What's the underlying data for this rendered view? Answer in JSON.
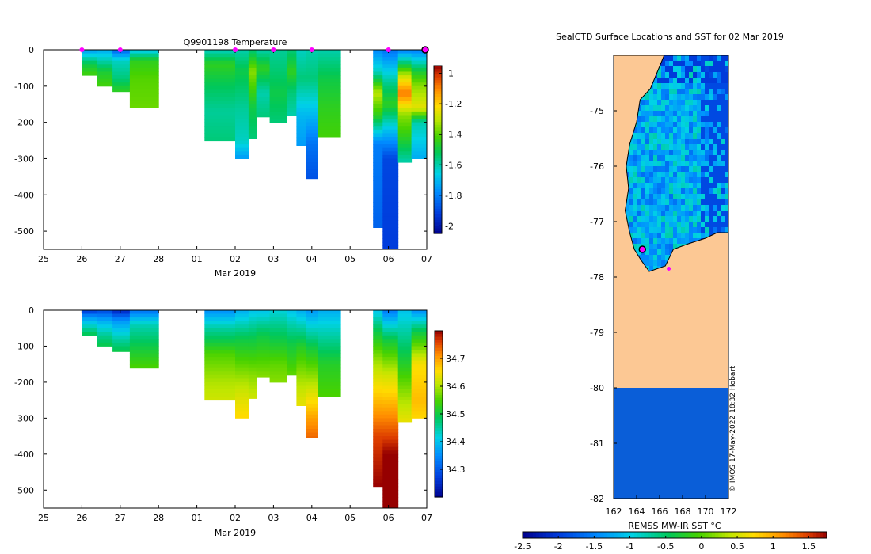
{
  "chart_data": [
    {
      "type": "heatmap",
      "id": "temperature",
      "title": "Q9901198  Temperature",
      "xlabel": "Mar 2019",
      "ylabel": "",
      "x_ticks": [
        "25",
        "26",
        "27",
        "28",
        "01",
        "02",
        "03",
        "04",
        "05",
        "06",
        "07"
      ],
      "x_tick_days": [
        0,
        1,
        2,
        3,
        4,
        5,
        6,
        7,
        8,
        9,
        10
      ],
      "xlim_days": [
        0,
        10
      ],
      "ylim": [
        -550,
        0
      ],
      "y_ticks": [
        0,
        -100,
        -200,
        -300,
        -400,
        -500
      ],
      "colorbar": {
        "min": -2.05,
        "max": -0.95,
        "ticks": [
          -1,
          -1.2,
          -1.4,
          -1.6,
          -1.8,
          -2
        ]
      },
      "profile_markers_days": [
        1.0,
        2.0,
        5.0,
        6.0,
        7.0,
        9.0
      ],
      "current_marker_days": 10.0,
      "profiles": [
        {
          "x0": 1.0,
          "x1": 1.4,
          "depth": 70,
          "stops": [
            [
              0,
              -1.75
            ],
            [
              20,
              -1.62
            ],
            [
              40,
              -1.5
            ],
            [
              70,
              -1.42
            ]
          ]
        },
        {
          "x0": 1.4,
          "x1": 1.8,
          "depth": 100,
          "stops": [
            [
              0,
              -1.72
            ],
            [
              30,
              -1.6
            ],
            [
              60,
              -1.48
            ],
            [
              100,
              -1.42
            ]
          ]
        },
        {
          "x0": 1.8,
          "x1": 2.25,
          "depth": 115,
          "stops": [
            [
              0,
              -1.85
            ],
            [
              30,
              -1.62
            ],
            [
              80,
              -1.55
            ],
            [
              115,
              -1.45
            ]
          ]
        },
        {
          "x0": 2.25,
          "x1": 3.0,
          "depth": 160,
          "stops": [
            [
              0,
              -1.68
            ],
            [
              30,
              -1.45
            ],
            [
              80,
              -1.4
            ],
            [
              160,
              -1.38
            ]
          ]
        },
        {
          "x0": 4.2,
          "x1": 5.0,
          "depth": 250,
          "stops": [
            [
              0,
              -1.62
            ],
            [
              40,
              -1.45
            ],
            [
              100,
              -1.52
            ],
            [
              170,
              -1.58
            ],
            [
              250,
              -1.55
            ]
          ]
        },
        {
          "x0": 5.0,
          "x1": 5.35,
          "depth": 300,
          "stops": [
            [
              0,
              -1.6
            ],
            [
              60,
              -1.5
            ],
            [
              160,
              -1.58
            ],
            [
              250,
              -1.62
            ],
            [
              300,
              -1.75
            ]
          ]
        },
        {
          "x0": 5.35,
          "x1": 5.55,
          "depth": 245,
          "stops": [
            [
              0,
              -1.55
            ],
            [
              60,
              -1.35
            ],
            [
              160,
              -1.5
            ],
            [
              245,
              -1.55
            ]
          ]
        },
        {
          "x0": 5.55,
          "x1": 5.9,
          "depth": 185,
          "stops": [
            [
              0,
              -1.6
            ],
            [
              50,
              -1.45
            ],
            [
              120,
              -1.6
            ],
            [
              185,
              -1.55
            ]
          ]
        },
        {
          "x0": 5.9,
          "x1": 6.35,
          "depth": 200,
          "stops": [
            [
              0,
              -1.58
            ],
            [
              50,
              -1.55
            ],
            [
              120,
              -1.5
            ],
            [
              200,
              -1.55
            ]
          ]
        },
        {
          "x0": 6.35,
          "x1": 6.6,
          "depth": 180,
          "stops": [
            [
              0,
              -1.55
            ],
            [
              60,
              -1.45
            ],
            [
              120,
              -1.55
            ],
            [
              180,
              -1.6
            ]
          ]
        },
        {
          "x0": 6.6,
          "x1": 6.85,
          "depth": 265,
          "stops": [
            [
              0,
              -1.62
            ],
            [
              80,
              -1.55
            ],
            [
              180,
              -1.7
            ],
            [
              265,
              -1.75
            ]
          ]
        },
        {
          "x0": 6.85,
          "x1": 7.15,
          "depth": 355,
          "stops": [
            [
              0,
              -1.6
            ],
            [
              80,
              -1.55
            ],
            [
              180,
              -1.7
            ],
            [
              260,
              -1.82
            ],
            [
              355,
              -1.88
            ]
          ]
        },
        {
          "x0": 7.15,
          "x1": 7.75,
          "depth": 240,
          "stops": [
            [
              0,
              -1.6
            ],
            [
              80,
              -1.5
            ],
            [
              160,
              -1.45
            ],
            [
              240,
              -1.42
            ]
          ]
        },
        {
          "x0": 8.6,
          "x1": 8.85,
          "depth": 490,
          "stops": [
            [
              0,
              -1.78
            ],
            [
              60,
              -1.62
            ],
            [
              120,
              -1.3
            ],
            [
              180,
              -1.45
            ],
            [
              260,
              -1.8
            ],
            [
              490,
              -1.85
            ]
          ]
        },
        {
          "x0": 8.85,
          "x1": 9.25,
          "depth": 550,
          "stops": [
            [
              0,
              -1.82
            ],
            [
              100,
              -1.55
            ],
            [
              150,
              -1.45
            ],
            [
              220,
              -1.68
            ],
            [
              300,
              -1.9
            ],
            [
              550,
              -1.92
            ]
          ]
        },
        {
          "x0": 9.25,
          "x1": 9.6,
          "depth": 310,
          "stops": [
            [
              0,
              -1.8
            ],
            [
              70,
              -1.3
            ],
            [
              120,
              -1.08
            ],
            [
              180,
              -1.35
            ],
            [
              240,
              -1.45
            ],
            [
              310,
              -1.6
            ]
          ]
        },
        {
          "x0": 9.6,
          "x1": 10.05,
          "depth": 300,
          "stops": [
            [
              0,
              -1.8
            ],
            [
              60,
              -1.48
            ],
            [
              100,
              -1.35
            ],
            [
              160,
              -1.25
            ],
            [
              200,
              -1.6
            ],
            [
              300,
              -1.72
            ]
          ]
        }
      ]
    },
    {
      "type": "heatmap",
      "id": "salinity",
      "title": "",
      "xlabel": "Mar 2019",
      "ylabel": "",
      "x_ticks": [
        "25",
        "26",
        "27",
        "28",
        "01",
        "02",
        "03",
        "04",
        "05",
        "06",
        "07"
      ],
      "x_tick_days": [
        0,
        1,
        2,
        3,
        4,
        5,
        6,
        7,
        8,
        9,
        10
      ],
      "xlim_days": [
        0,
        10
      ],
      "ylim": [
        -550,
        0
      ],
      "y_ticks": [
        0,
        -100,
        -200,
        -300,
        -400,
        -500
      ],
      "colorbar": {
        "min": 34.2,
        "max": 34.8,
        "ticks": [
          34.7,
          34.6,
          34.5,
          34.4,
          34.3
        ]
      },
      "profiles": [
        {
          "x0": 1.0,
          "x1": 1.4,
          "depth": 70,
          "stops": [
            [
              0,
              34.26
            ],
            [
              20,
              34.36
            ],
            [
              50,
              34.45
            ],
            [
              70,
              34.5
            ]
          ]
        },
        {
          "x0": 1.4,
          "x1": 1.8,
          "depth": 100,
          "stops": [
            [
              0,
              34.28
            ],
            [
              30,
              34.38
            ],
            [
              70,
              34.46
            ],
            [
              100,
              34.5
            ]
          ]
        },
        {
          "x0": 1.8,
          "x1": 2.25,
          "depth": 115,
          "stops": [
            [
              0,
              34.24
            ],
            [
              30,
              34.36
            ],
            [
              80,
              34.45
            ],
            [
              115,
              34.5
            ]
          ]
        },
        {
          "x0": 2.25,
          "x1": 3.0,
          "depth": 160,
          "stops": [
            [
              0,
              34.32
            ],
            [
              40,
              34.44
            ],
            [
              100,
              34.5
            ],
            [
              160,
              34.55
            ]
          ]
        },
        {
          "x0": 4.2,
          "x1": 5.0,
          "depth": 250,
          "stops": [
            [
              0,
              34.35
            ],
            [
              50,
              34.45
            ],
            [
              120,
              34.55
            ],
            [
              200,
              34.6
            ],
            [
              250,
              34.62
            ]
          ]
        },
        {
          "x0": 5.0,
          "x1": 5.35,
          "depth": 300,
          "stops": [
            [
              0,
              34.38
            ],
            [
              80,
              34.5
            ],
            [
              200,
              34.6
            ],
            [
              260,
              34.64
            ],
            [
              300,
              34.66
            ]
          ]
        },
        {
          "x0": 5.35,
          "x1": 5.55,
          "depth": 245,
          "stops": [
            [
              0,
              34.4
            ],
            [
              80,
              34.5
            ],
            [
              180,
              34.58
            ],
            [
              245,
              34.62
            ]
          ]
        },
        {
          "x0": 5.55,
          "x1": 5.9,
          "depth": 185,
          "stops": [
            [
              0,
              34.4
            ],
            [
              70,
              34.5
            ],
            [
              140,
              34.55
            ],
            [
              185,
              34.58
            ]
          ]
        },
        {
          "x0": 5.9,
          "x1": 6.35,
          "depth": 200,
          "stops": [
            [
              0,
              34.42
            ],
            [
              80,
              34.5
            ],
            [
              150,
              34.56
            ],
            [
              200,
              34.58
            ]
          ]
        },
        {
          "x0": 6.35,
          "x1": 6.6,
          "depth": 180,
          "stops": [
            [
              0,
              34.4
            ],
            [
              90,
              34.5
            ],
            [
              180,
              34.56
            ]
          ]
        },
        {
          "x0": 6.6,
          "x1": 6.85,
          "depth": 265,
          "stops": [
            [
              0,
              34.38
            ],
            [
              100,
              34.52
            ],
            [
              200,
              34.6
            ],
            [
              265,
              34.64
            ]
          ]
        },
        {
          "x0": 6.85,
          "x1": 7.15,
          "depth": 355,
          "stops": [
            [
              0,
              34.36
            ],
            [
              100,
              34.5
            ],
            [
              200,
              34.6
            ],
            [
              300,
              34.7
            ],
            [
              355,
              34.74
            ]
          ]
        },
        {
          "x0": 7.15,
          "x1": 7.75,
          "depth": 240,
          "stops": [
            [
              0,
              34.38
            ],
            [
              60,
              34.44
            ],
            [
              150,
              34.52
            ],
            [
              240,
              34.55
            ]
          ]
        },
        {
          "x0": 8.6,
          "x1": 8.85,
          "depth": 490,
          "stops": [
            [
              0,
              34.4
            ],
            [
              60,
              34.5
            ],
            [
              150,
              34.6
            ],
            [
              250,
              34.68
            ],
            [
              350,
              34.76
            ],
            [
              490,
              34.8
            ]
          ]
        },
        {
          "x0": 8.85,
          "x1": 9.25,
          "depth": 550,
          "stops": [
            [
              0,
              34.33
            ],
            [
              80,
              34.5
            ],
            [
              180,
              34.62
            ],
            [
              300,
              34.72
            ],
            [
              400,
              34.8
            ],
            [
              550,
              34.8
            ]
          ]
        },
        {
          "x0": 9.25,
          "x1": 9.6,
          "depth": 310,
          "stops": [
            [
              0,
              34.4
            ],
            [
              60,
              34.45
            ],
            [
              150,
              34.52
            ],
            [
              250,
              34.6
            ],
            [
              310,
              34.64
            ]
          ]
        },
        {
          "x0": 9.6,
          "x1": 10.05,
          "depth": 300,
          "stops": [
            [
              0,
              34.35
            ],
            [
              60,
              34.5
            ],
            [
              150,
              34.65
            ],
            [
              250,
              34.68
            ],
            [
              300,
              34.66
            ]
          ]
        }
      ]
    },
    {
      "type": "heatmap",
      "id": "sst-map",
      "title": "SealCTD Surface Locations and SST for 02 Mar 2019",
      "xlabel": "",
      "ylabel": "",
      "xlim": [
        162,
        172
      ],
      "ylim": [
        -82,
        -74
      ],
      "x_ticks": [
        162,
        164,
        166,
        168,
        170,
        172
      ],
      "y_ticks": [
        -75,
        -76,
        -77,
        -78,
        -79,
        -80,
        -81,
        -82
      ],
      "colorbar": {
        "label": "REMSS MW-IR SST °C",
        "min": -2.5,
        "max": 1.75,
        "ticks": [
          "-2.5",
          "-2",
          "-1.5",
          "-1",
          "-0.5",
          "0",
          "0.5",
          "1",
          "1.5"
        ]
      },
      "land_color": "#fcc894",
      "ice_shelf_edge_lat": -80,
      "coastline_lon_lat": [
        [
          166.4,
          -74.0
        ],
        [
          166.0,
          -74.2
        ],
        [
          165.2,
          -74.6
        ],
        [
          164.3,
          -74.8
        ],
        [
          164.0,
          -75.2
        ],
        [
          163.4,
          -75.6
        ],
        [
          163.1,
          -76.0
        ],
        [
          163.3,
          -76.4
        ],
        [
          163.0,
          -76.8
        ],
        [
          163.4,
          -77.2
        ],
        [
          163.8,
          -77.5
        ],
        [
          164.4,
          -77.7
        ],
        [
          165.1,
          -77.9
        ],
        [
          166.5,
          -77.8
        ],
        [
          167.2,
          -77.5
        ],
        [
          168.5,
          -77.4
        ],
        [
          170.0,
          -77.3
        ],
        [
          171.0,
          -77.2
        ],
        [
          172.0,
          -77.2
        ]
      ],
      "locations": [
        {
          "lon": 164.5,
          "lat": -77.5,
          "current": true
        },
        {
          "lon": 166.8,
          "lat": -77.85,
          "current": false
        }
      ],
      "watermark": "© IMOS 17-May-2022 18:32 Hobart"
    }
  ]
}
